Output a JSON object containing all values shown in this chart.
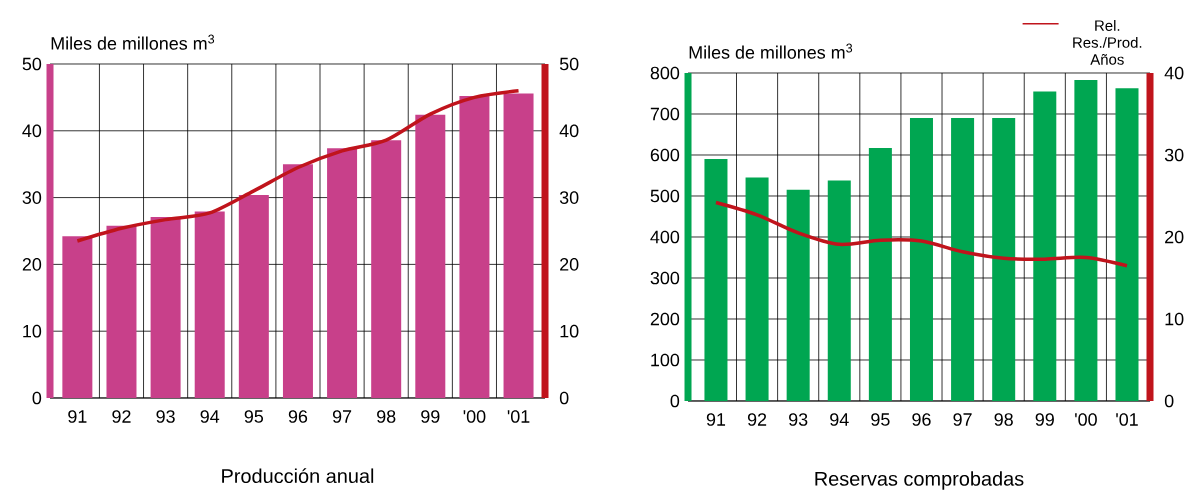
{
  "chart_data": [
    {
      "type": "bar",
      "title": "Producción anual",
      "ylabel": "Miles de millones m$^{3}$",
      "categories": [
        "91",
        "92",
        "93",
        "94",
        "95",
        "96",
        "97",
        "98",
        "99",
        "'00",
        "'01"
      ],
      "series": [
        {
          "color": "#c8408a",
          "values": [
            24.2,
            25.8,
            27.1,
            27.9,
            30.4,
            35.0,
            37.4,
            38.6,
            42.4,
            45.2,
            45.6
          ]
        },
        {
          "type": "line",
          "axis": "y2",
          "color": "#c0141c",
          "values": [
            23.5,
            25.4,
            26.7,
            27.7,
            31.0,
            34.5,
            37.0,
            38.6,
            42.5,
            45.0,
            46.0
          ]
        }
      ],
      "ylim": [
        0,
        50
      ],
      "yticks": [
        0,
        10,
        20,
        30,
        40,
        50
      ],
      "y2lim": [
        0,
        50
      ],
      "y2ticks": [
        0,
        10,
        20,
        30,
        40,
        50
      ],
      "grid": true
    },
    {
      "type": "bar",
      "title": "Reservas comprobadas",
      "ylabel": "Miles de millones m$^{3}$",
      "categories": [
        "91",
        "92",
        "93",
        "94",
        "95",
        "96",
        "97",
        "98",
        "99",
        "'00",
        "'01"
      ],
      "series": [
        {
          "color": "#00a651",
          "values": [
            590,
            545,
            515,
            538,
            617,
            690,
            690,
            690,
            755,
            783,
            763
          ]
        },
        {
          "type": "line",
          "axis": "y2",
          "name": "Rel. Res./Prod. Años",
          "color": "#c0141c",
          "values": [
            24.2,
            22.7,
            20.5,
            19.1,
            19.6,
            19.5,
            18.2,
            17.4,
            17.3,
            17.5,
            16.5
          ]
        }
      ],
      "ylim": [
        0,
        800
      ],
      "yticks": [
        0,
        100,
        200,
        300,
        400,
        500,
        600,
        700,
        800
      ],
      "y2lim": [
        0,
        40
      ],
      "y2ticks": [
        0,
        10,
        20,
        30,
        40
      ],
      "grid": true,
      "legend": "top right"
    }
  ]
}
